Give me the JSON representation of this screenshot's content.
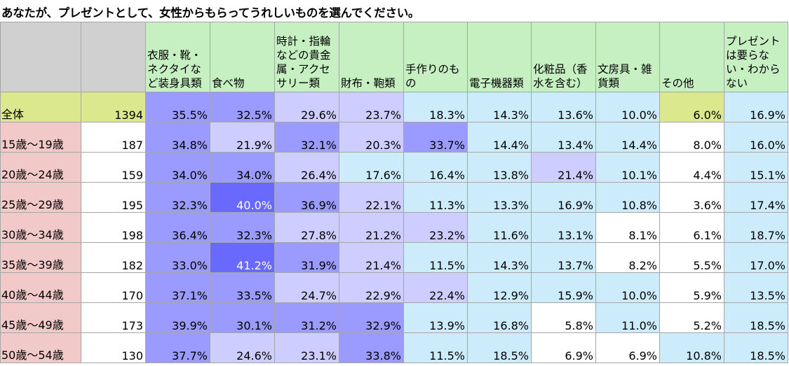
{
  "title": "あなたが、プレゼントとして、女性からもらってうれしいものを選んでください。",
  "chart_data": {
    "type": "table",
    "columns": [
      "",
      "",
      "衣服・靴・ネクタイなど装身具類",
      "食べ物",
      "時計・指輪などの貴金属・アクセサリー類",
      "財布・鞄類",
      "手作りのもの",
      "電子機器類",
      "化粧品（香水を含む）",
      "文房具・雑貨類",
      "その他",
      "プレゼントは要らない・わからない"
    ],
    "rows": [
      {
        "label": "全体",
        "count": "1394",
        "values": [
          "35.5%",
          "32.5%",
          "29.6%",
          "23.7%",
          "18.3%",
          "14.3%",
          "13.6%",
          "10.0%",
          "6.0%",
          "16.9%"
        ]
      },
      {
        "label": "15歳～19歳",
        "count": "187",
        "values": [
          "34.8%",
          "21.9%",
          "32.1%",
          "20.3%",
          "33.7%",
          "14.4%",
          "13.4%",
          "14.4%",
          "8.0%",
          "16.0%"
        ]
      },
      {
        "label": "20歳～24歳",
        "count": "159",
        "values": [
          "34.0%",
          "34.0%",
          "26.4%",
          "17.6%",
          "16.4%",
          "13.8%",
          "21.4%",
          "10.1%",
          "4.4%",
          "15.1%"
        ]
      },
      {
        "label": "25歳～29歳",
        "count": "195",
        "values": [
          "32.3%",
          "40.0%",
          "36.9%",
          "22.1%",
          "11.3%",
          "13.3%",
          "16.9%",
          "10.8%",
          "3.6%",
          "17.4%"
        ]
      },
      {
        "label": "30歳～34歳",
        "count": "198",
        "values": [
          "36.4%",
          "32.3%",
          "27.8%",
          "21.2%",
          "23.2%",
          "11.6%",
          "13.1%",
          "8.1%",
          "6.1%",
          "18.7%"
        ]
      },
      {
        "label": "35歳～39歳",
        "count": "182",
        "values": [
          "33.0%",
          "41.2%",
          "31.9%",
          "21.4%",
          "11.5%",
          "14.3%",
          "13.7%",
          "8.2%",
          "5.5%",
          "17.0%"
        ]
      },
      {
        "label": "40歳～44歳",
        "count": "170",
        "values": [
          "37.1%",
          "33.5%",
          "24.7%",
          "22.9%",
          "22.4%",
          "12.9%",
          "15.9%",
          "10.0%",
          "5.9%",
          "13.5%"
        ]
      },
      {
        "label": "45歳～49歳",
        "count": "173",
        "values": [
          "39.9%",
          "30.1%",
          "31.2%",
          "32.9%",
          "13.9%",
          "16.8%",
          "5.8%",
          "11.0%",
          "5.2%",
          "18.5%"
        ]
      },
      {
        "label": "50歳～54歳",
        "count": "130",
        "values": [
          "37.7%",
          "24.6%",
          "23.1%",
          "33.8%",
          "11.5%",
          "18.5%",
          "6.9%",
          "6.9%",
          "10.8%",
          "18.5%"
        ]
      }
    ],
    "cell_colors": [
      [
        "#9b9bff",
        "#9b9bff",
        "#cdcdff",
        "#cdcdff",
        "#ccecfc",
        "#ccecfc",
        "#ccecfc",
        "#ccecfc",
        "#dbe88e",
        "#ccecfc"
      ],
      [
        "#9b9bff",
        "#cdcdff",
        "#9b9bff",
        "#cdcdff",
        "#9b9bff",
        "#ccecfc",
        "#ccecfc",
        "#ccecfc",
        "#ffffff",
        "#ccecfc"
      ],
      [
        "#9b9bff",
        "#9b9bff",
        "#cdcdff",
        "#ccecfc",
        "#ccecfc",
        "#ccecfc",
        "#cdcdff",
        "#ccecfc",
        "#ffffff",
        "#ccecfc"
      ],
      [
        "#9b9bff",
        "#6969ff",
        "#9b9bff",
        "#cdcdff",
        "#ccecfc",
        "#ccecfc",
        "#ccecfc",
        "#ccecfc",
        "#ffffff",
        "#ccecfc"
      ],
      [
        "#9b9bff",
        "#9b9bff",
        "#cdcdff",
        "#cdcdff",
        "#cdcdff",
        "#ccecfc",
        "#ccecfc",
        "#ffffff",
        "#ffffff",
        "#ccecfc"
      ],
      [
        "#9b9bff",
        "#6969ff",
        "#9b9bff",
        "#cdcdff",
        "#ccecfc",
        "#ccecfc",
        "#ccecfc",
        "#ffffff",
        "#ffffff",
        "#ccecfc"
      ],
      [
        "#9b9bff",
        "#9b9bff",
        "#cdcdff",
        "#cdcdff",
        "#cdcdff",
        "#ccecfc",
        "#ccecfc",
        "#ccecfc",
        "#ffffff",
        "#ccecfc"
      ],
      [
        "#9b9bff",
        "#9b9bff",
        "#9b9bff",
        "#9b9bff",
        "#ccecfc",
        "#ccecfc",
        "#ffffff",
        "#ccecfc",
        "#ffffff",
        "#ccecfc"
      ],
      [
        "#9b9bff",
        "#cdcdff",
        "#cdcdff",
        "#9b9bff",
        "#ccecfc",
        "#ccecfc",
        "#ffffff",
        "#ffffff",
        "#ccecfc",
        "#ccecfc"
      ]
    ],
    "white_text_cells": [
      [
        3,
        1
      ],
      [
        5,
        1
      ]
    ],
    "header_colors": {
      "blank": "#d0d0d0",
      "category": "#c6f0c2"
    },
    "row_label_colors": {
      "total": "#dbe88e",
      "age": "#f2c9c9"
    }
  }
}
